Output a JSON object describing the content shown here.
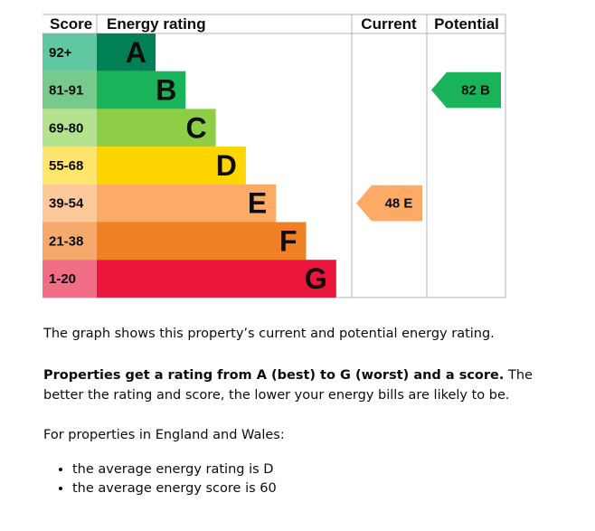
{
  "chart_data": {
    "type": "bar",
    "headers": {
      "score": "Score",
      "energy_rating": "Energy rating",
      "current": "Current",
      "potential": "Potential"
    },
    "bands": [
      {
        "range": "92+",
        "letter": "A",
        "color": "#008054",
        "score_bg": "#5fc8a0",
        "letter_color": "#0b0c0c"
      },
      {
        "range": "81-91",
        "letter": "B",
        "color": "#19b459",
        "score_bg": "#78c98c",
        "letter_color": "#0b0c0c"
      },
      {
        "range": "69-80",
        "letter": "C",
        "color": "#8dce46",
        "score_bg": "#b5e28e",
        "letter_color": "#0b0c0c"
      },
      {
        "range": "55-68",
        "letter": "D",
        "color": "#ffd500",
        "score_bg": "#ffe56b",
        "letter_color": "#0b0c0c"
      },
      {
        "range": "39-54",
        "letter": "E",
        "color": "#fcaa65",
        "score_bg": "#fdc99b",
        "letter_color": "#0b0c0c"
      },
      {
        "range": "21-38",
        "letter": "F",
        "color": "#ef8023",
        "score_bg": "#f5aa6b",
        "letter_color": "#0b0c0c"
      },
      {
        "range": "1-20",
        "letter": "G",
        "color": "#e9153b",
        "score_bg": "#f06d85",
        "letter_color": "#0b0c0c"
      }
    ],
    "current": {
      "score": 48,
      "letter": "E",
      "label": "48  E",
      "color": "#fcaa65",
      "text_color": "#0b0c0c"
    },
    "potential": {
      "score": 82,
      "letter": "B",
      "label": "82  B",
      "color": "#19b459",
      "text_color": "#0b0c0c"
    }
  },
  "description": {
    "p1": "The graph shows this property’s current and potential energy rating.",
    "p2_bold": "Properties get a rating from A (best) to G (worst) and a score.",
    "p2_rest": " The better the rating and score, the lower your energy bills are likely to be.",
    "p3": "For properties in England and Wales:",
    "bullets": [
      "the average energy rating is D",
      "the average energy score is 60"
    ]
  }
}
